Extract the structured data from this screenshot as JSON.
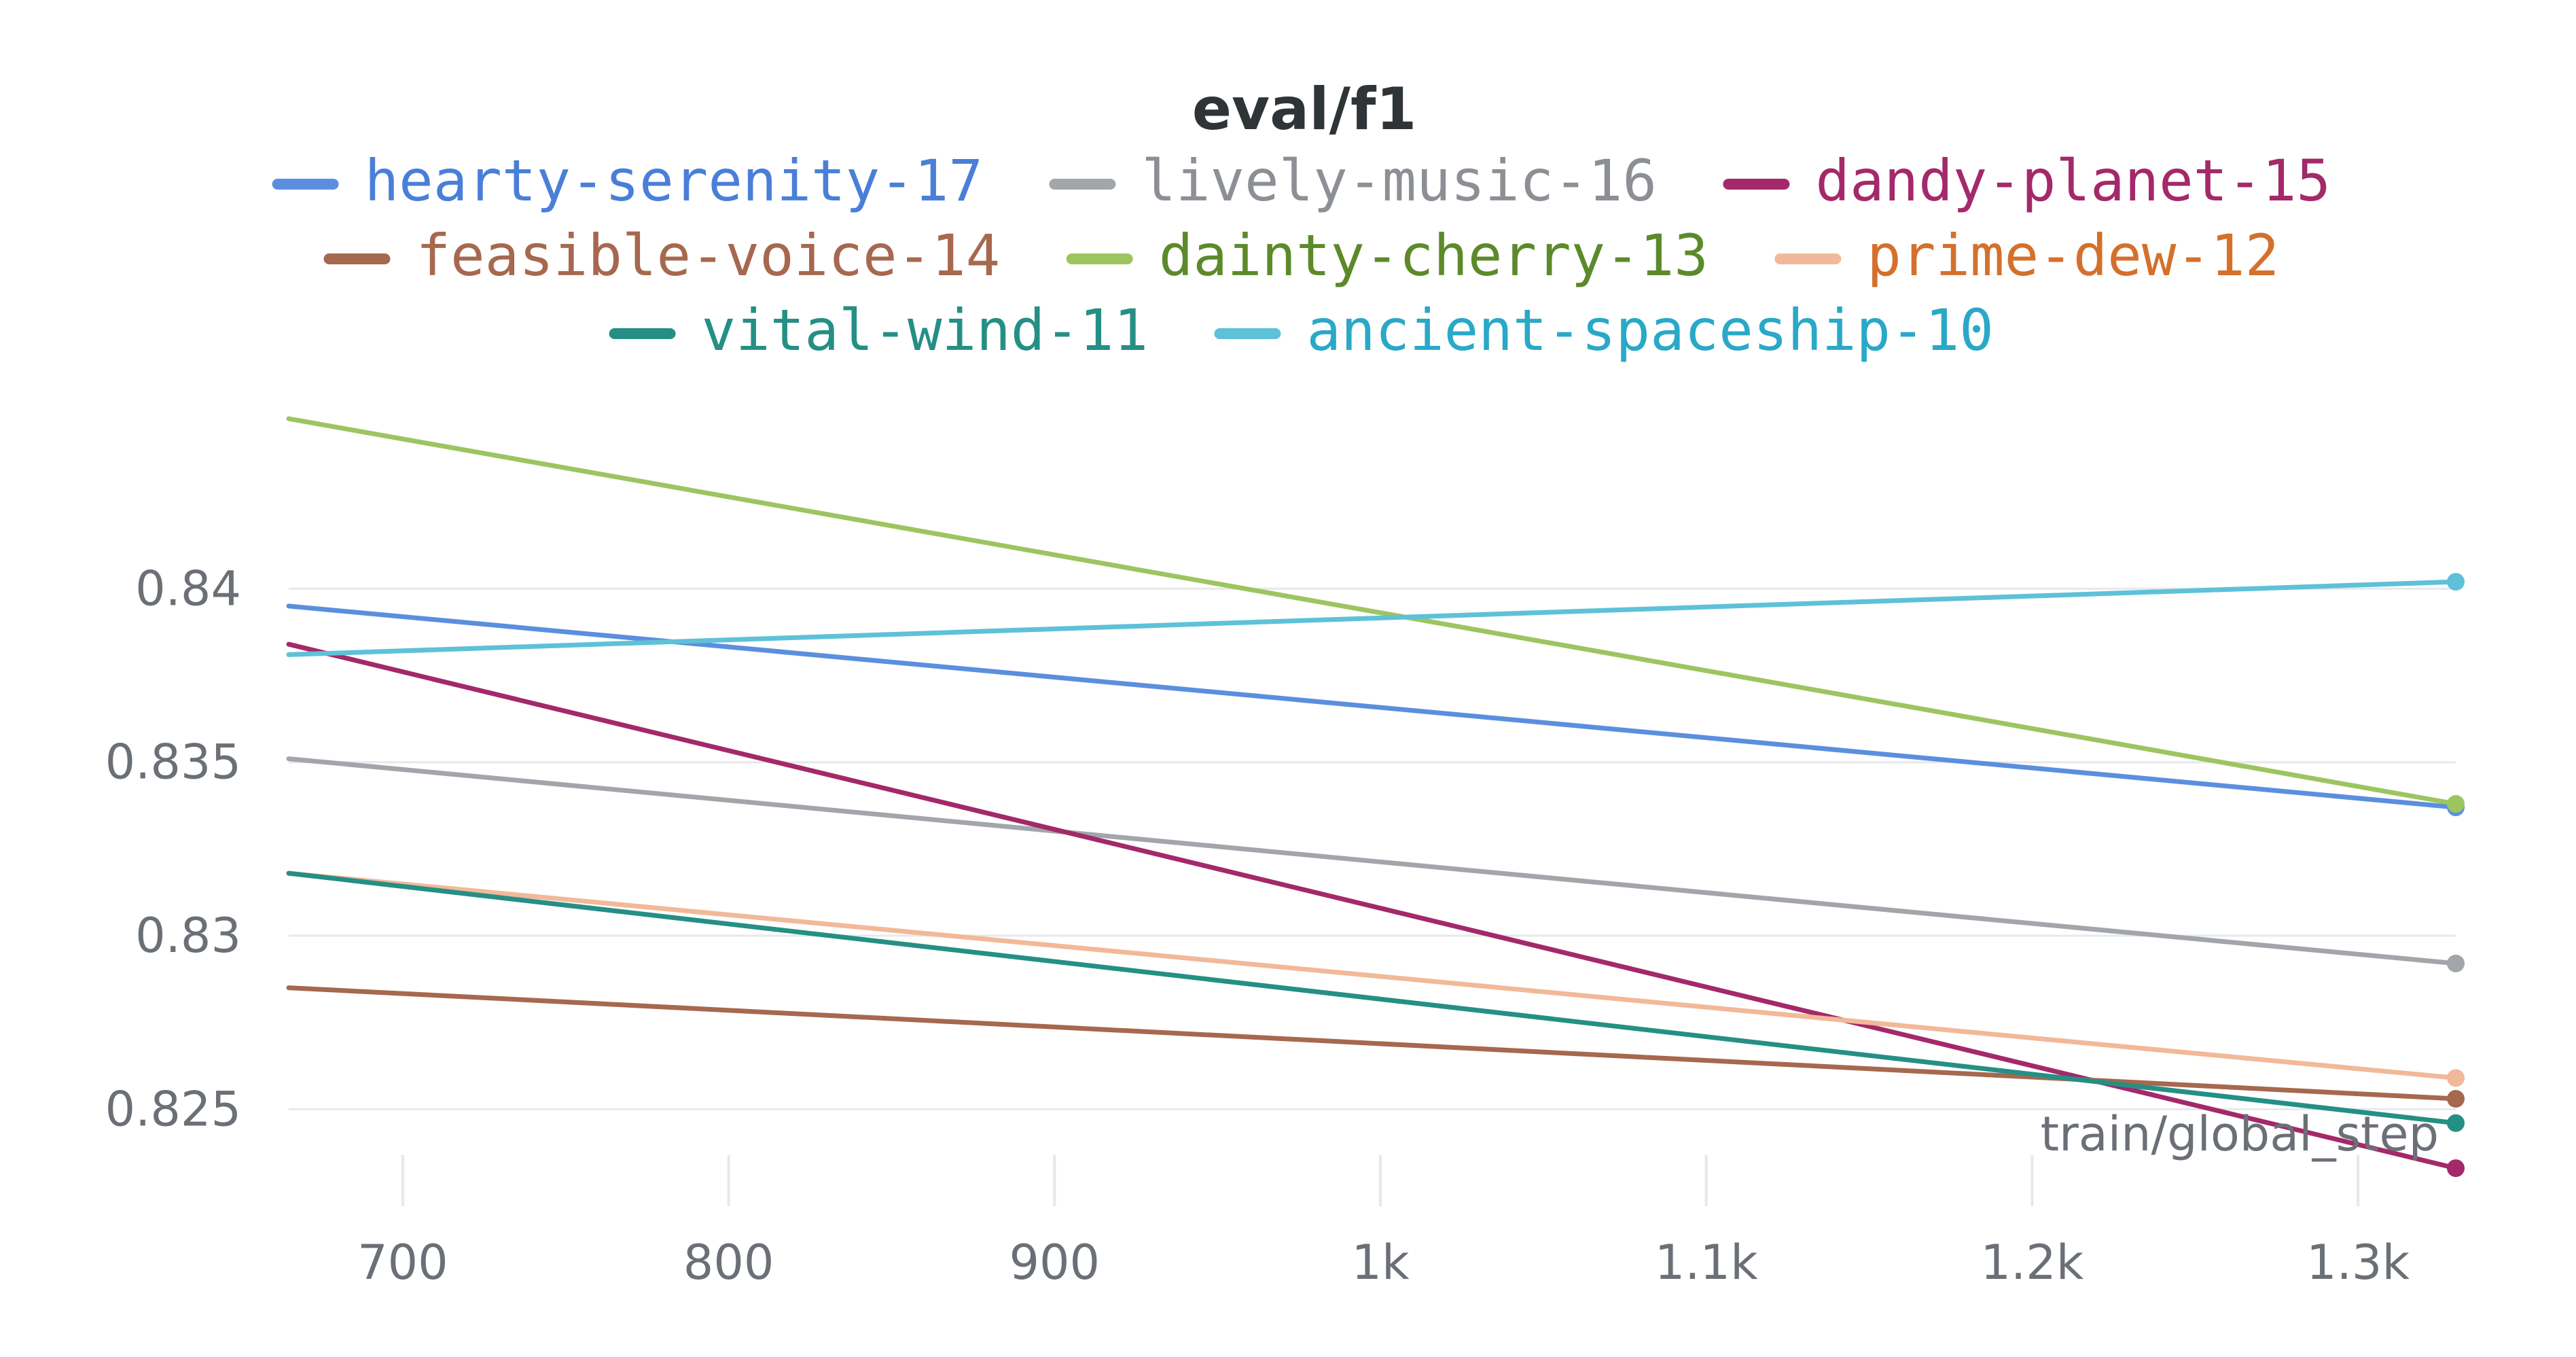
{
  "chart_data": {
    "type": "line",
    "title": "eval/f1",
    "xlabel": "train/global_step",
    "ylabel": "",
    "xlim": [
      665,
      1330
    ],
    "ylim": [
      0.8225,
      0.846
    ],
    "x_ticks": [
      {
        "value": 700,
        "label": "700"
      },
      {
        "value": 800,
        "label": "800"
      },
      {
        "value": 900,
        "label": "900"
      },
      {
        "value": 1000,
        "label": "1k"
      },
      {
        "value": 1100,
        "label": "1.1k"
      },
      {
        "value": 1200,
        "label": "1.2k"
      },
      {
        "value": 1300,
        "label": "1.3k"
      }
    ],
    "y_ticks": [
      {
        "value": 0.825,
        "label": "0.825"
      },
      {
        "value": 0.83,
        "label": "0.83"
      },
      {
        "value": 0.835,
        "label": "0.835"
      },
      {
        "value": 0.84,
        "label": "0.84"
      }
    ],
    "grid": "horizontal",
    "legend_position": "top",
    "series": [
      {
        "name": "hearty-serenity-17",
        "color": "#5b8fde",
        "text_color": "#4a7fd8",
        "x": [
          665,
          1330
        ],
        "y": [
          0.8395,
          0.8337
        ]
      },
      {
        "name": "lively-music-16",
        "color": "#a2a6aa",
        "text_color": "#8c9095",
        "x": [
          665,
          1330
        ],
        "y": [
          0.8351,
          0.8292
        ]
      },
      {
        "name": "dandy-planet-15",
        "color": "#a3296a",
        "text_color": "#a3296a",
        "x": [
          665,
          1330
        ],
        "y": [
          0.8384,
          0.8233
        ]
      },
      {
        "name": "feasible-voice-14",
        "color": "#a6684e",
        "text_color": "#a6684e",
        "x": [
          665,
          1330
        ],
        "y": [
          0.8285,
          0.8253
        ]
      },
      {
        "name": "dainty-cherry-13",
        "color": "#9cc560",
        "text_color": "#5c8a2a",
        "x": [
          665,
          1330
        ],
        "y": [
          0.8449,
          0.8338
        ]
      },
      {
        "name": "prime-dew-12",
        "color": "#f1b999",
        "text_color": "#d4702c",
        "x": [
          665,
          1330
        ],
        "y": [
          0.8318,
          0.8259
        ]
      },
      {
        "name": "vital-wind-11",
        "color": "#258f85",
        "text_color": "#258f85",
        "x": [
          665,
          1330
        ],
        "y": [
          0.8318,
          0.8246
        ]
      },
      {
        "name": "ancient-spaceship-10",
        "color": "#5ec1d8",
        "text_color": "#2aa8c8",
        "x": [
          665,
          1330
        ],
        "y": [
          0.8381,
          0.8402
        ]
      }
    ]
  }
}
